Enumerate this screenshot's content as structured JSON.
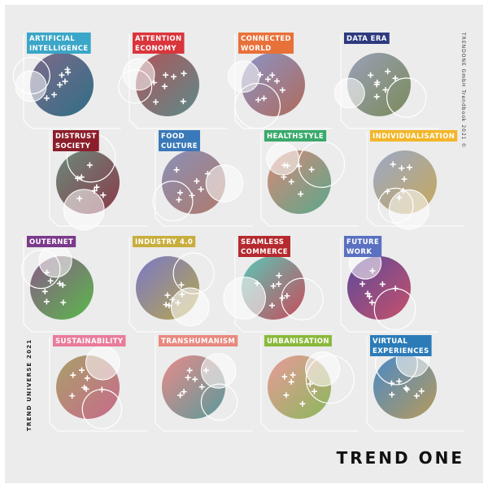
{
  "tiles": [
    {
      "lines": [
        "ARTIFICIAL",
        "INTELLIGENCE"
      ],
      "color": "#3aa6c8",
      "fill": [
        "#7f6a8a",
        "#2f6e86"
      ]
    },
    {
      "lines": [
        "ATTENTION",
        "ECONOMY"
      ],
      "color": "#d9353b",
      "fill": [
        "#b0565a",
        "#5c8a8a"
      ]
    },
    {
      "lines": [
        "CONNECTED",
        "WORLD"
      ],
      "color": "#e8713a",
      "fill": [
        "#8a94c8",
        "#b06a5a"
      ]
    },
    {
      "lines": [
        "DATA ERA"
      ],
      "color": "#2d3a7e",
      "fill": [
        "#9aa0b8",
        "#7a8a5a"
      ]
    },
    {
      "lines": [
        "DISTRUST",
        "SOCIETY"
      ],
      "color": "#8b1e2b",
      "fill": [
        "#6a8a7a",
        "#8a3a4a"
      ]
    },
    {
      "lines": [
        "FOOD",
        "CULTURE"
      ],
      "color": "#3a79b9",
      "fill": [
        "#8a90b8",
        "#b07a6a"
      ]
    },
    {
      "lines": [
        "HEALTHSTYLE"
      ],
      "color": "#3aa96b",
      "fill": [
        "#d8887a",
        "#5aa88a"
      ]
    },
    {
      "lines": [
        "INDIVIDUALISATION"
      ],
      "color": "#f2b62a",
      "fill": [
        "#9aa8c8",
        "#c8a85a"
      ]
    },
    {
      "lines": [
        "OUTERNET"
      ],
      "color": "#7b3a8b",
      "fill": [
        "#8a5a8a",
        "#5ab84a"
      ]
    },
    {
      "lines": [
        "INDUSTRY 4.0"
      ],
      "color": "#c8ae3e",
      "fill": [
        "#7a78c8",
        "#b8a84a"
      ]
    },
    {
      "lines": [
        "SEAMLESS",
        "COMMERCE"
      ],
      "color": "#b52a2e",
      "fill": [
        "#5ac8b8",
        "#c84a5a"
      ]
    },
    {
      "lines": [
        "FUTURE",
        "WORK"
      ],
      "color": "#5a70c0",
      "fill": [
        "#5a4a9a",
        "#c8506a"
      ]
    },
    {
      "lines": [
        "SUSTAINABILITY"
      ],
      "color": "#e97b9b",
      "fill": [
        "#a8a06a",
        "#c86a8a"
      ]
    },
    {
      "lines": [
        "TRANSHUMANISM"
      ],
      "color": "#e8897f",
      "fill": [
        "#e88a8a",
        "#5a9a9a"
      ]
    },
    {
      "lines": [
        "URBANISATION"
      ],
      "color": "#8ab93b",
      "fill": [
        "#e89a9a",
        "#8ab85a"
      ]
    },
    {
      "lines": [
        "VIRTUAL",
        "EXPERIENCES"
      ],
      "color": "#2b7bb9",
      "fill": [
        "#4a8ac8",
        "#b89a5a"
      ]
    }
  ],
  "side_left": "TREND UNIVERSE 2021",
  "side_right": "TRENDONE GmbH Trendbook 2021 ©",
  "logo": "TREND ONE"
}
